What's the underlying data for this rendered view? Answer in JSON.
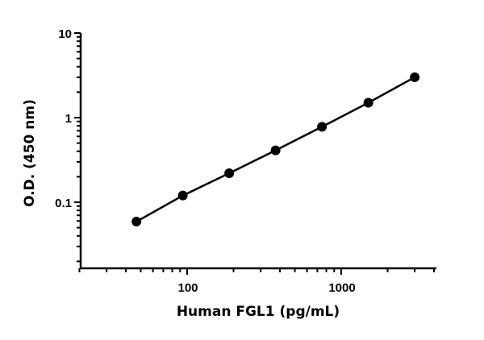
{
  "chart_data": {
    "type": "scatter",
    "title": "",
    "xlabel": "Human FGL1 (pg/mL)",
    "ylabel": "O.D. (450 nm)",
    "xscale": "log",
    "yscale": "log",
    "xlim": [
      20,
      4100
    ],
    "ylim": [
      0.0166,
      10
    ],
    "grid": false,
    "legend": null,
    "x_tick_labels": [
      "100",
      "1000"
    ],
    "y_tick_labels": [
      "0.1",
      "1",
      "10"
    ],
    "series": [
      {
        "name": "Human FGL1 standard curve",
        "marker": "filled-circle",
        "line": "fit",
        "color": "#000000",
        "x": [
          46.875,
          93.75,
          187.5,
          375,
          750,
          1500,
          3000
        ],
        "y": [
          0.059,
          0.12,
          0.22,
          0.41,
          0.78,
          1.5,
          3.0
        ]
      }
    ]
  }
}
